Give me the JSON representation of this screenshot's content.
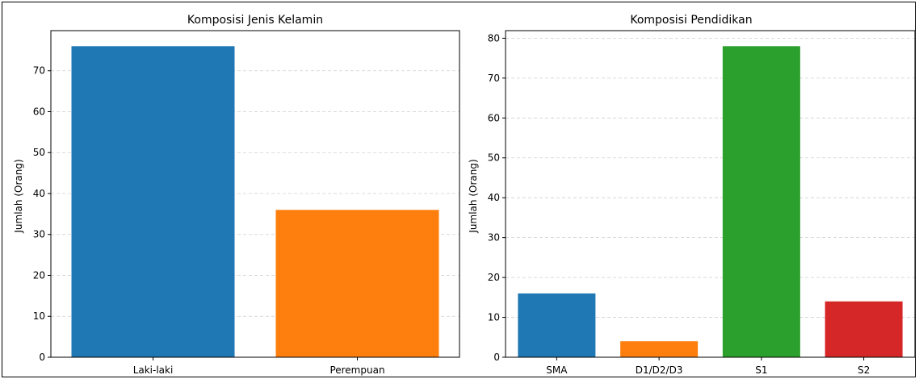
{
  "chart_data": [
    {
      "type": "bar",
      "title": "Komposisi Jenis Kelamin",
      "xlabel": "",
      "ylabel": "Jumlah (Orang)",
      "categories": [
        "Laki-laki",
        "Perempuan"
      ],
      "values": [
        76,
        36
      ],
      "colors": [
        "#1f77b4",
        "#ff7f0e"
      ],
      "ylim": [
        0,
        79.8
      ],
      "yticks": [
        0,
        10,
        20,
        30,
        40,
        50,
        60,
        70
      ],
      "grid": "y"
    },
    {
      "type": "bar",
      "title": "Komposisi Pendidikan",
      "xlabel": "",
      "ylabel": "Jumlah (Orang)",
      "categories": [
        "SMA",
        "D1/D2/D3",
        "S1",
        "S2"
      ],
      "values": [
        16,
        4,
        78,
        14
      ],
      "colors": [
        "#1f77b4",
        "#ff7f0e",
        "#2ca02c",
        "#d62728"
      ],
      "ylim": [
        0,
        81.9
      ],
      "yticks": [
        0,
        10,
        20,
        30,
        40,
        50,
        60,
        70,
        80
      ],
      "grid": "y"
    }
  ]
}
